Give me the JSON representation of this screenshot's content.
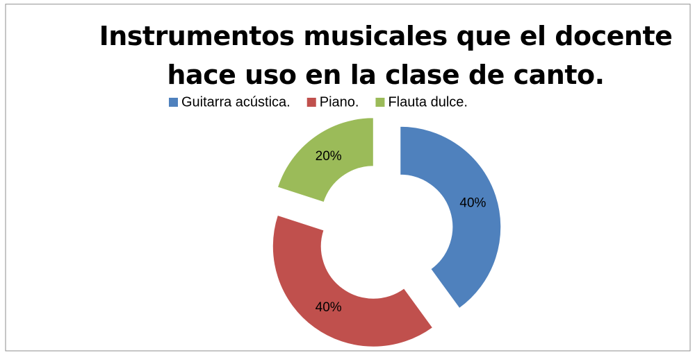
{
  "chart_data": {
    "type": "donut",
    "title": "Instrumentos musicales que el docente hace uso en la clase de canto.",
    "categories": [
      "Guitarra acústica.",
      "Piano.",
      "Flauta dulce."
    ],
    "values": [
      40,
      40,
      20
    ],
    "value_labels": [
      "40%",
      "40%",
      "20%"
    ],
    "colors": [
      "#4f81bd",
      "#c0504d",
      "#9bbb59"
    ],
    "legend": "top",
    "exploded": true
  }
}
